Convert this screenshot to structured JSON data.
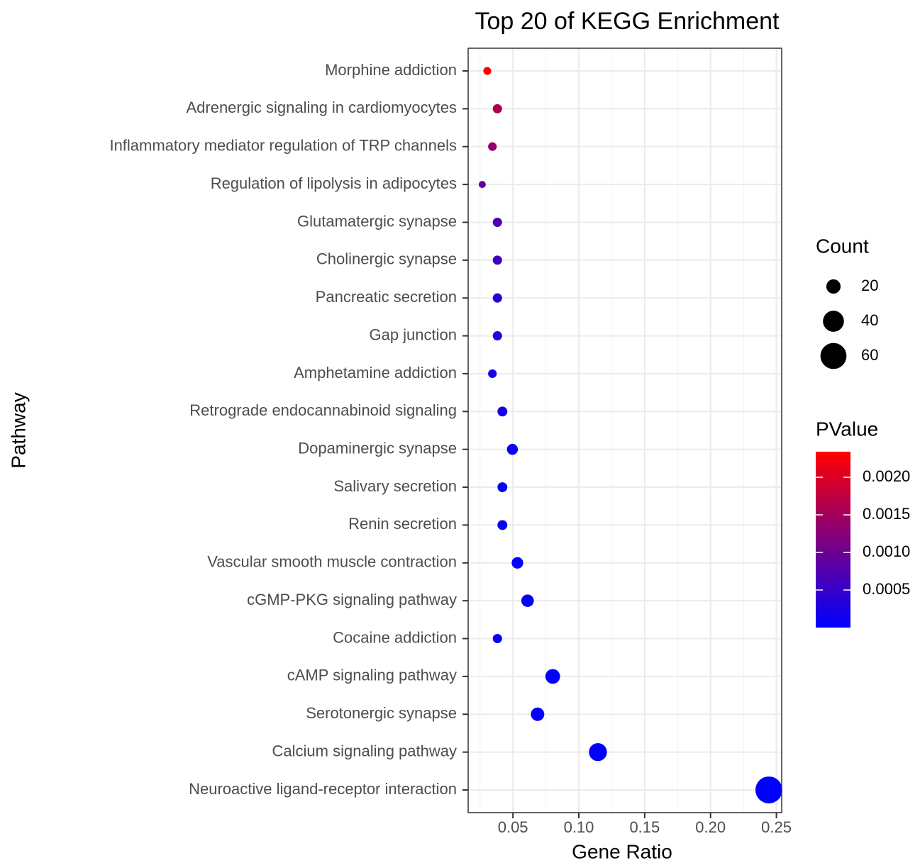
{
  "chart_data": {
    "type": "scatter",
    "title": "Top 20 of KEGG Enrichment",
    "x_label": "Gene Ratio",
    "y_label": "Pathway",
    "categories": [
      "Morphine addiction",
      "Adrenergic signaling in cardiomyocytes",
      "Inflammatory mediator regulation of TRP channels",
      "Regulation of lipolysis in adipocytes",
      "Glutamatergic synapse",
      "Cholinergic synapse",
      "Pancreatic secretion",
      "Gap junction",
      "Amphetamine addiction",
      "Retrograde endocannabinoid signaling",
      "Dopaminergic synapse",
      "Salivary secretion",
      "Renin secretion",
      "Vascular smooth muscle contraction",
      "cGMP-PKG signaling pathway",
      "Cocaine addiction",
      "cAMP signaling pathway",
      "Serotonergic synapse",
      "Calcium signaling pathway",
      "Neuroactive ligand-receptor interaction"
    ],
    "values": [
      0.0305,
      0.0382,
      0.0344,
      0.0267,
      0.0382,
      0.0382,
      0.0382,
      0.0382,
      0.0344,
      0.042,
      0.0496,
      0.042,
      0.042,
      0.0534,
      0.0611,
      0.0382,
      0.0802,
      0.0687,
      0.1145,
      0.2443
    ],
    "counts": [
      8,
      10,
      9,
      7,
      10,
      10,
      10,
      10,
      9,
      11,
      13,
      11,
      11,
      14,
      16,
      10,
      21,
      18,
      30,
      64
    ],
    "pvalues": [
      0.00234,
      0.0016,
      0.0013,
      0.0009,
      0.0007,
      0.0006,
      0.0004,
      0.0003,
      0.00025,
      0.0002,
      0.0001,
      6e-05,
      5e-05,
      4e-05,
      3e-05,
      3e-05,
      2e-05,
      1e-05,
      5e-06,
      1e-08
    ],
    "xlim": [
      0.016,
      0.254
    ],
    "xticks": [
      0.05,
      {
        "value": 0.1,
        "label": "0.10"
      },
      0.15,
      {
        "value": 0.2,
        "label": "0.20"
      },
      0.25
    ],
    "grid": true,
    "size_legend": {
      "title": "Count",
      "breaks": [
        20,
        40,
        60
      ]
    },
    "color_legend": {
      "title": "PValue",
      "low": "#0000ff",
      "high": "#ff0000",
      "ticks": [
        {
          "value": 0.002,
          "label": "0.0020"
        },
        0.0015,
        {
          "value": 0.001,
          "label": "0.0010"
        },
        0.0005
      ]
    }
  }
}
